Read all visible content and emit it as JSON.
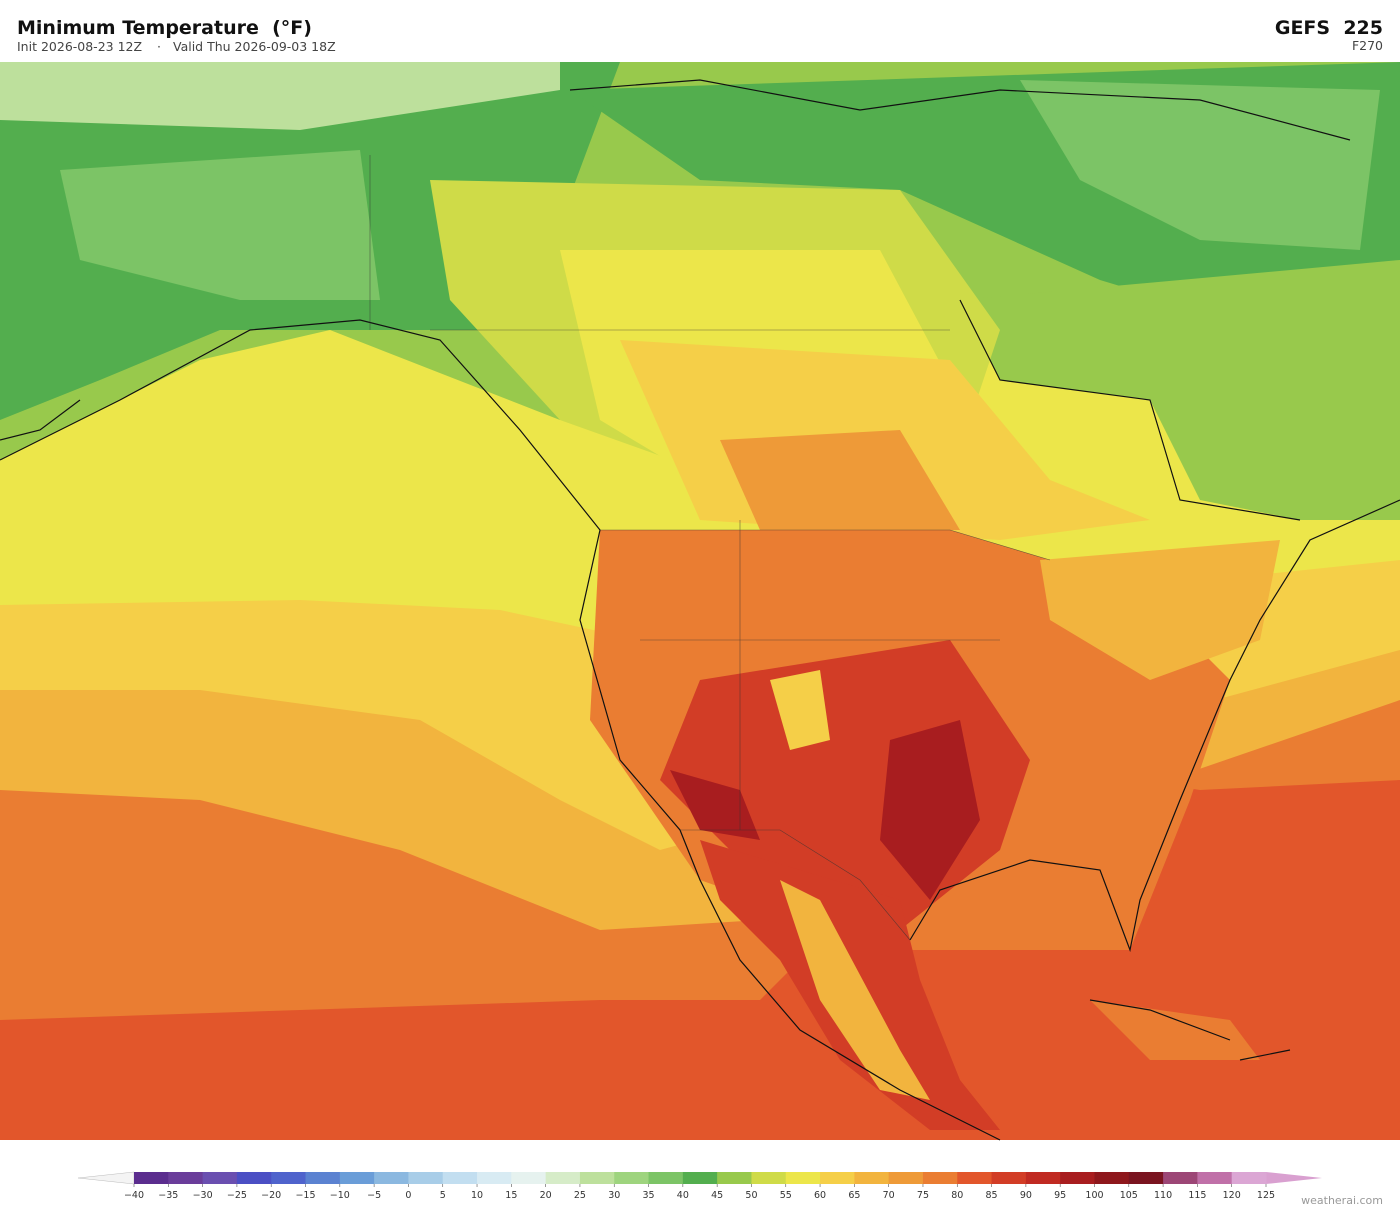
{
  "header": {
    "title": "Minimum Temperature  (°F)",
    "init": "Init 2026-08-23 12Z",
    "separator": "·",
    "valid": "Valid Thu 2026-09-03 18Z",
    "model": "GEFS  225",
    "forecast_hour": "F270"
  },
  "colorbar": {
    "ticks": [
      {
        "value": -40,
        "label": "−40"
      },
      {
        "value": -35,
        "label": "−35"
      },
      {
        "value": -30,
        "label": "−30"
      },
      {
        "value": -25,
        "label": "−25"
      },
      {
        "value": -20,
        "label": "−20"
      },
      {
        "value": -15,
        "label": "−15"
      },
      {
        "value": -10,
        "label": "−10"
      },
      {
        "value": -5,
        "label": "−5"
      },
      0,
      5,
      10,
      15,
      20,
      25,
      30,
      35,
      40,
      45,
      50,
      55,
      60,
      65,
      70,
      75,
      80,
      85,
      90,
      95,
      100,
      105,
      110,
      115,
      120,
      125
    ],
    "colors": [
      "#5b2d8e",
      "#6a3d9a",
      "#6a4fb0",
      "#4b4fc4",
      "#4f63cc",
      "#5b82d1",
      "#6a9dd8",
      "#8bb8e0",
      "#a8cde8",
      "#c2def0",
      "#d8ebf3",
      "#e6f2ef",
      "#d6ecc8",
      "#bde09c",
      "#9ed47e",
      "#7cc466",
      "#53ae4e",
      "#98c94c",
      "#cfdb48",
      "#ece64a",
      "#f5cf48",
      "#f2b43e",
      "#ee9a38",
      "#ea7d32",
      "#e2562b",
      "#d23d26",
      "#c02a22",
      "#a81d1f",
      "#8e171c",
      "#7a1420",
      "#9c4676",
      "#c070a8",
      "#dba6d4"
    ],
    "under_color": "#f4f4f4",
    "over_color": "#d9a0d0"
  },
  "footer": {
    "credit": "weatherai.com"
  }
}
